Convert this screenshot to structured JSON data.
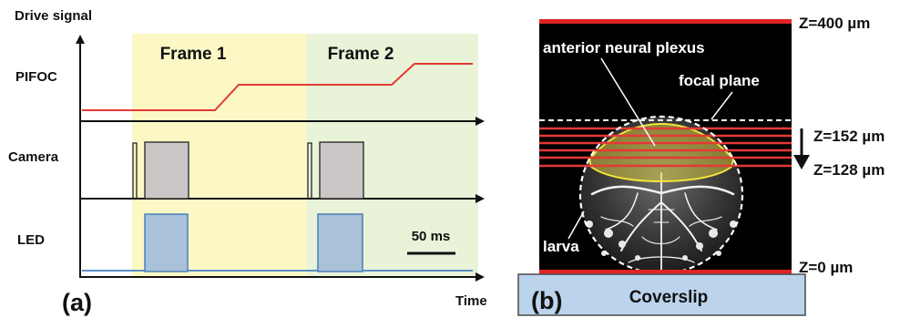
{
  "panel_a": {
    "panel_label": "(a)",
    "y_axis_label": "Drive signal",
    "x_axis_label": "Time",
    "frame1_label": "Frame 1",
    "frame2_label": "Frame 2",
    "channels": {
      "pifoc": "PIFOC",
      "camera": "Camera",
      "led": "LED"
    },
    "scale_bar_label": "50 ms",
    "colors": {
      "frame1_fill": "#fbf8c6",
      "frame2_fill": "#e8f3d8",
      "pifoc_trace": "#e53935",
      "camera_pulse": "#cbc7c7",
      "led_pulse": "#a9c1d9",
      "led_trace": "#5b8fc7"
    }
  },
  "panel_b": {
    "panel_label": "(b)",
    "z_top": "Z=400 µm",
    "z_152": "Z=152 µm",
    "z_128": "Z=128 µm",
    "z_bottom": "Z=0 µm",
    "anterior_label": "anterior neural plexus",
    "focal_label": "focal plane",
    "larva_label": "larva",
    "coverslip_label": "Coverslip",
    "colors": {
      "background": "#000000",
      "plane_lines": "#e53935",
      "plexus_outline": "#f3e33a",
      "coverslip": "#bcd3ec"
    }
  }
}
